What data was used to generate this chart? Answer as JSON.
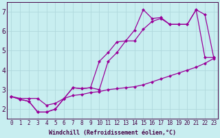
{
  "xlabel": "Windchill (Refroidissement éolien,°C)",
  "bg_color": "#c8eef0",
  "grid_color": "#b0d8dc",
  "line_color": "#990099",
  "xlim": [
    -0.5,
    23.5
  ],
  "ylim": [
    1.5,
    7.5
  ],
  "xticks": [
    0,
    1,
    2,
    3,
    4,
    5,
    6,
    7,
    8,
    9,
    10,
    11,
    12,
    13,
    14,
    15,
    16,
    17,
    18,
    19,
    20,
    21,
    22,
    23
  ],
  "yticks": [
    2,
    3,
    4,
    5,
    6,
    7
  ],
  "line1_x": [
    0,
    1,
    2,
    3,
    4,
    5,
    6,
    7,
    8,
    9,
    10,
    11,
    12,
    13,
    14,
    15,
    16,
    17,
    18,
    19,
    20,
    21,
    22,
    23
  ],
  "line1_y": [
    2.65,
    2.55,
    2.55,
    2.55,
    2.2,
    2.3,
    2.55,
    2.7,
    2.75,
    2.85,
    2.9,
    3.0,
    3.05,
    3.1,
    3.15,
    3.25,
    3.4,
    3.55,
    3.7,
    3.85,
    4.0,
    4.15,
    4.35,
    4.6
  ],
  "line2_x": [
    0,
    1,
    2,
    3,
    4,
    5,
    6,
    7,
    8,
    9,
    10,
    11,
    12,
    13,
    14,
    15,
    16,
    17,
    18,
    19,
    20,
    21,
    22,
    23
  ],
  "line2_y": [
    2.65,
    2.5,
    2.4,
    1.85,
    1.85,
    2.0,
    2.55,
    3.1,
    3.05,
    3.1,
    4.45,
    4.9,
    5.45,
    5.5,
    6.05,
    7.1,
    6.65,
    6.7,
    6.35,
    6.35,
    6.35,
    7.1,
    6.85,
    4.65
  ],
  "line3_x": [
    0,
    1,
    2,
    3,
    4,
    5,
    6,
    7,
    8,
    9,
    10,
    11,
    12,
    13,
    14,
    15,
    16,
    17,
    18,
    19,
    20,
    21,
    22,
    23
  ],
  "line3_y": [
    2.65,
    2.5,
    2.4,
    1.85,
    1.85,
    2.0,
    2.55,
    3.1,
    3.05,
    3.1,
    3.0,
    4.45,
    4.9,
    5.5,
    5.5,
    6.1,
    6.5,
    6.65,
    6.35,
    6.35,
    6.35,
    7.1,
    4.65,
    4.65
  ],
  "xlabel_fontsize": 6,
  "ytick_fontsize": 7,
  "xtick_fontsize": 5.5
}
